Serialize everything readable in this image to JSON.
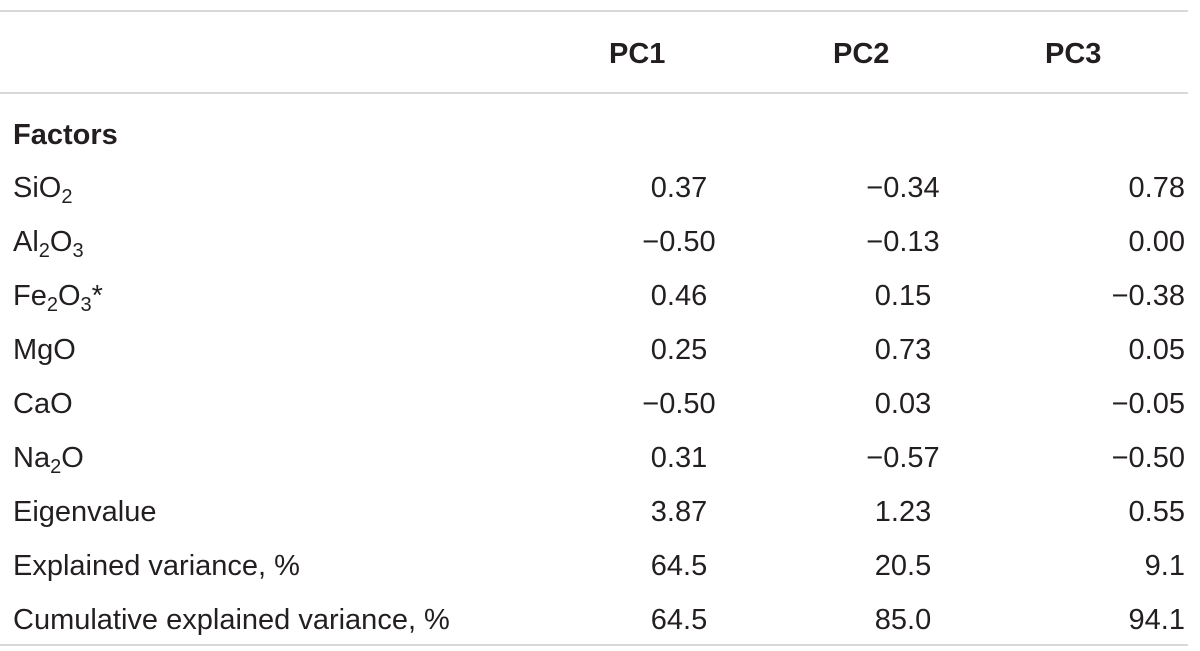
{
  "table": {
    "columns": [
      "PC1",
      "PC2",
      "PC3"
    ],
    "section_label": "Factors",
    "rows": [
      {
        "label_parts": [
          "Si",
          "O",
          "2",
          ""
        ],
        "values": [
          "0.37",
          "−0.34",
          "0.78"
        ]
      },
      {
        "label_parts": [
          "Al",
          "2",
          "O",
          "3"
        ],
        "values": [
          "−0.50",
          "−0.13",
          "0.00"
        ]
      },
      {
        "label_parts": [
          "Fe",
          "2",
          "O",
          "3",
          "*"
        ],
        "values": [
          "0.46",
          "0.15",
          "−0.38"
        ]
      },
      {
        "label": "MgO",
        "values": [
          "0.25",
          "0.73",
          "0.05"
        ]
      },
      {
        "label": "CaO",
        "values": [
          "−0.50",
          "0.03",
          "−0.05"
        ]
      },
      {
        "label_parts": [
          "Na",
          "2",
          "O"
        ],
        "values": [
          "0.31",
          "−0.57",
          "−0.50"
        ]
      },
      {
        "label": "Eigenvalue",
        "values": [
          "3.87",
          "1.23",
          "0.55"
        ]
      },
      {
        "label": "Explained variance, %",
        "values": [
          "64.5",
          "20.5",
          "9.1"
        ]
      },
      {
        "label": "Cumulative explained variance, %",
        "values": [
          "64.5",
          "85.0",
          "94.1"
        ]
      }
    ]
  }
}
